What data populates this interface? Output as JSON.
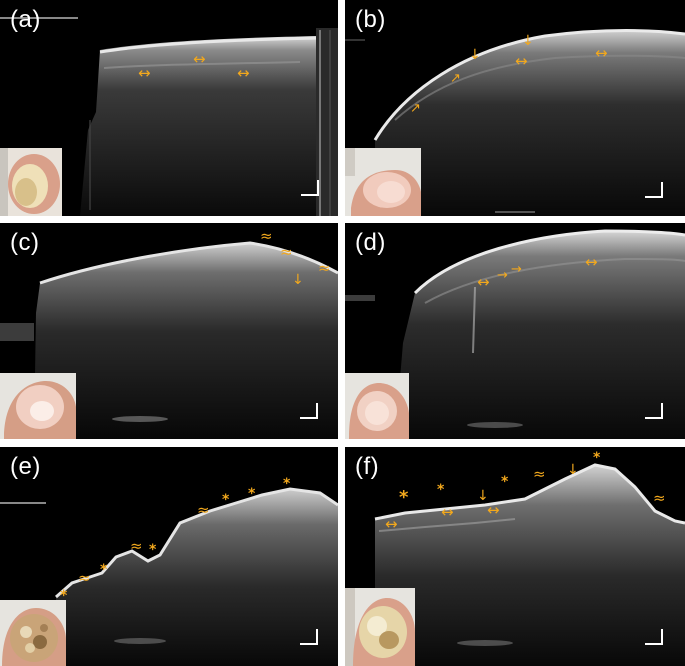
{
  "figure": {
    "panels": [
      {
        "id": "a",
        "label": "(a)"
      },
      {
        "id": "b",
        "label": "(b)"
      },
      {
        "id": "c",
        "label": "(c)"
      },
      {
        "id": "d",
        "label": "(d)"
      },
      {
        "id": "e",
        "label": "(e)"
      },
      {
        "id": "f",
        "label": "(f)"
      }
    ],
    "markers": {
      "horizontal_arrow": "↔",
      "down_arrow": "↓",
      "diagonal_arrow": "↗",
      "right_arrow": "→",
      "wavy": "≈",
      "star": "*"
    },
    "colors": {
      "marker": "#f2a81d",
      "background": "#000000",
      "label": "#ffffff",
      "skin": "#d9a08a",
      "nail": "#f0c8bd"
    }
  }
}
